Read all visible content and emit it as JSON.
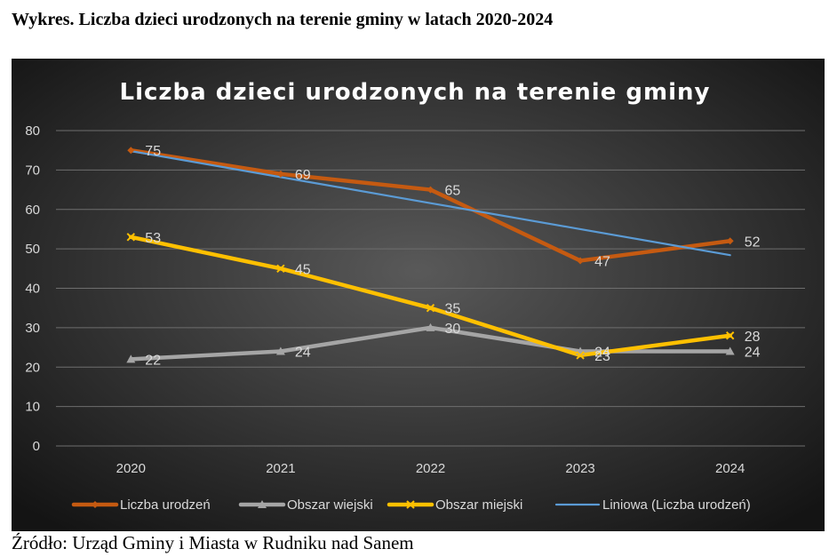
{
  "heading": "Wykres. Liczba dzieci urodzonych na terenie gminy w latach 2020-2024",
  "source": "Źródło: Urząd Gminy i Miasta w Rudniku nad Sanem",
  "colors": {
    "background_center": "#595959",
    "background_edge": "#141414",
    "gridline": "#6e6e6e",
    "axis_text": "#d9d9d9"
  },
  "chart_data": {
    "type": "line",
    "title": "Liczba dzieci urodzonych na terenie gminy",
    "xlabel": "",
    "ylabel": "",
    "categories": [
      "2020",
      "2021",
      "2022",
      "2023",
      "2024"
    ],
    "ylim": [
      0,
      80
    ],
    "yticks": [
      "0",
      "10",
      "20",
      "30",
      "40",
      "50",
      "60",
      "70",
      "80"
    ],
    "grid": true,
    "legend_position": "bottom",
    "series": [
      {
        "name": "Liczba urodzeń",
        "values": [
          75,
          69,
          65,
          47,
          52
        ],
        "color": "#c55a11",
        "marker": "diamond",
        "labels": true
      },
      {
        "name": "Obszar wiejski",
        "values": [
          22,
          24,
          30,
          24,
          24
        ],
        "color": "#a5a5a5",
        "marker": "triangle",
        "labels": true
      },
      {
        "name": "Obszar miejski",
        "values": [
          53,
          45,
          35,
          23,
          28
        ],
        "color": "#ffc000",
        "marker": "x",
        "labels": true
      },
      {
        "name": "Liniowa (Liczba urodzeń)",
        "values": [
          74.8,
          68.2,
          61.6,
          55.0,
          48.4
        ],
        "color": "#5b9bd5",
        "marker": "none",
        "labels": false,
        "trendline": true
      }
    ]
  }
}
